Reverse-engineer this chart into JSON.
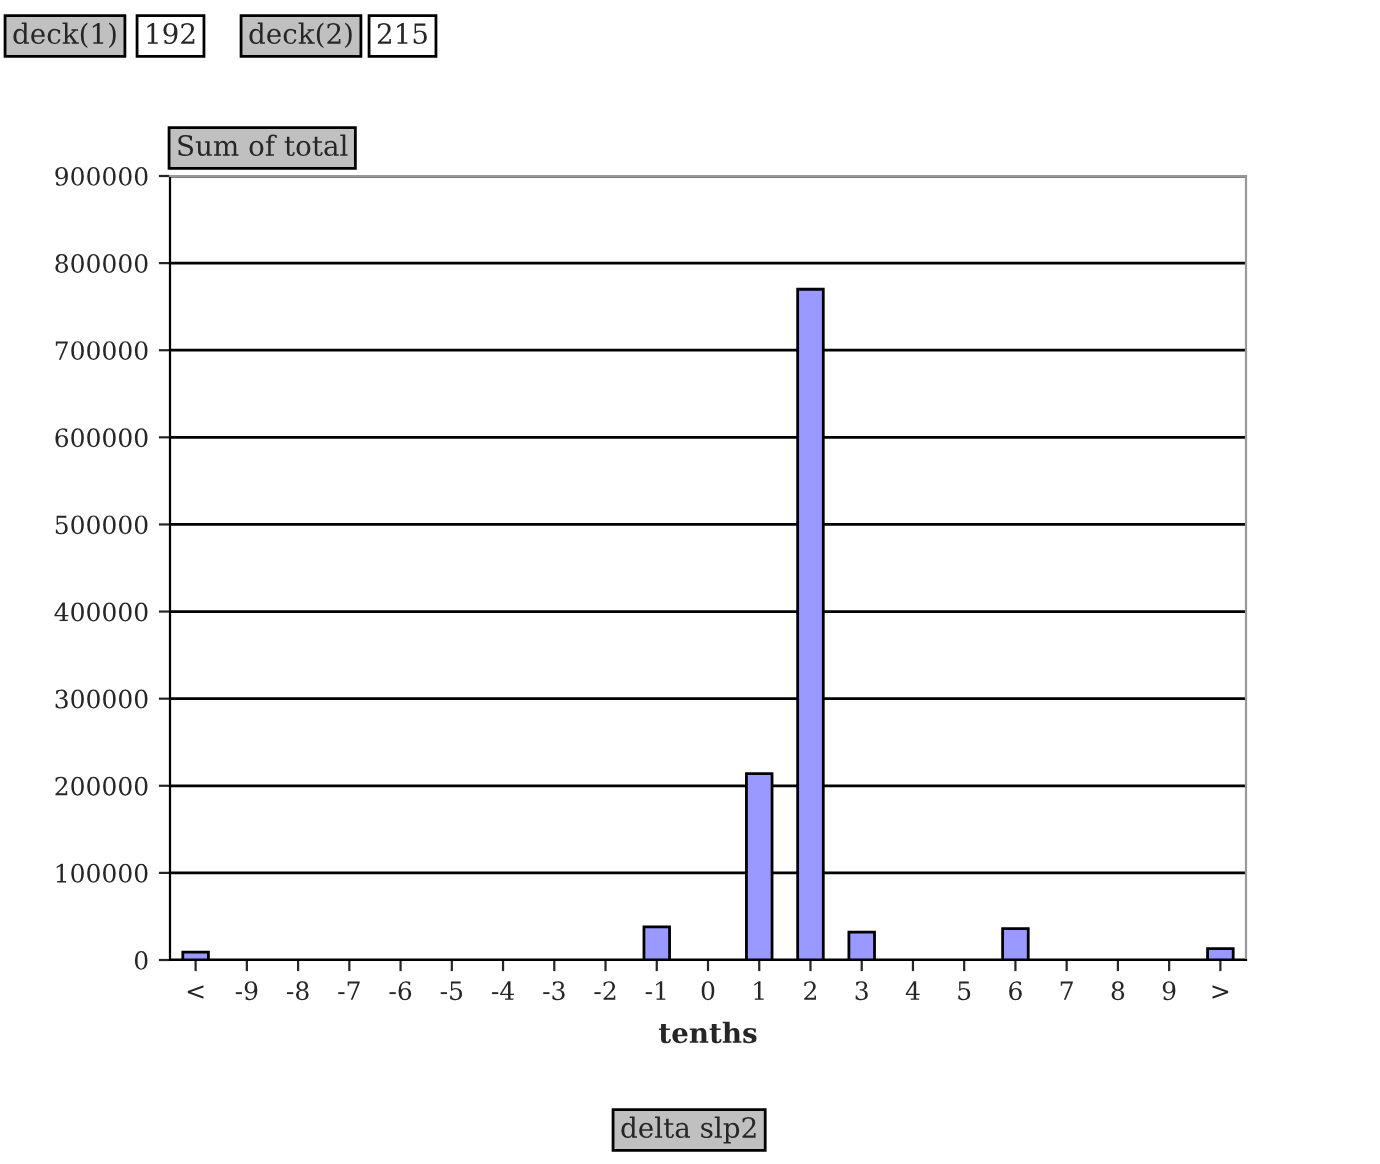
{
  "chart_data": {
    "type": "bar",
    "categories": [
      "<",
      "-9",
      "-8",
      "-7",
      "-6",
      "-5",
      "-4",
      "-3",
      "-2",
      "-1",
      "0",
      "1",
      "2",
      "3",
      "4",
      "5",
      "6",
      "7",
      "8",
      "9",
      ">"
    ],
    "values": [
      9000,
      0,
      0,
      0,
      0,
      0,
      0,
      0,
      0,
      38000,
      0,
      214000,
      770000,
      32000,
      0,
      0,
      36000,
      0,
      0,
      0,
      13000
    ],
    "color": "#9999ff",
    "xlabel": "tenths",
    "ylim": [
      0,
      900000
    ],
    "yticks": [
      0,
      100000,
      200000,
      300000,
      400000,
      500000,
      600000,
      700000,
      800000,
      900000
    ],
    "grid": "y",
    "annotations": [
      "deck(1)",
      "192",
      "deck(2)",
      "215",
      "Sum of total",
      "delta slp2"
    ]
  }
}
